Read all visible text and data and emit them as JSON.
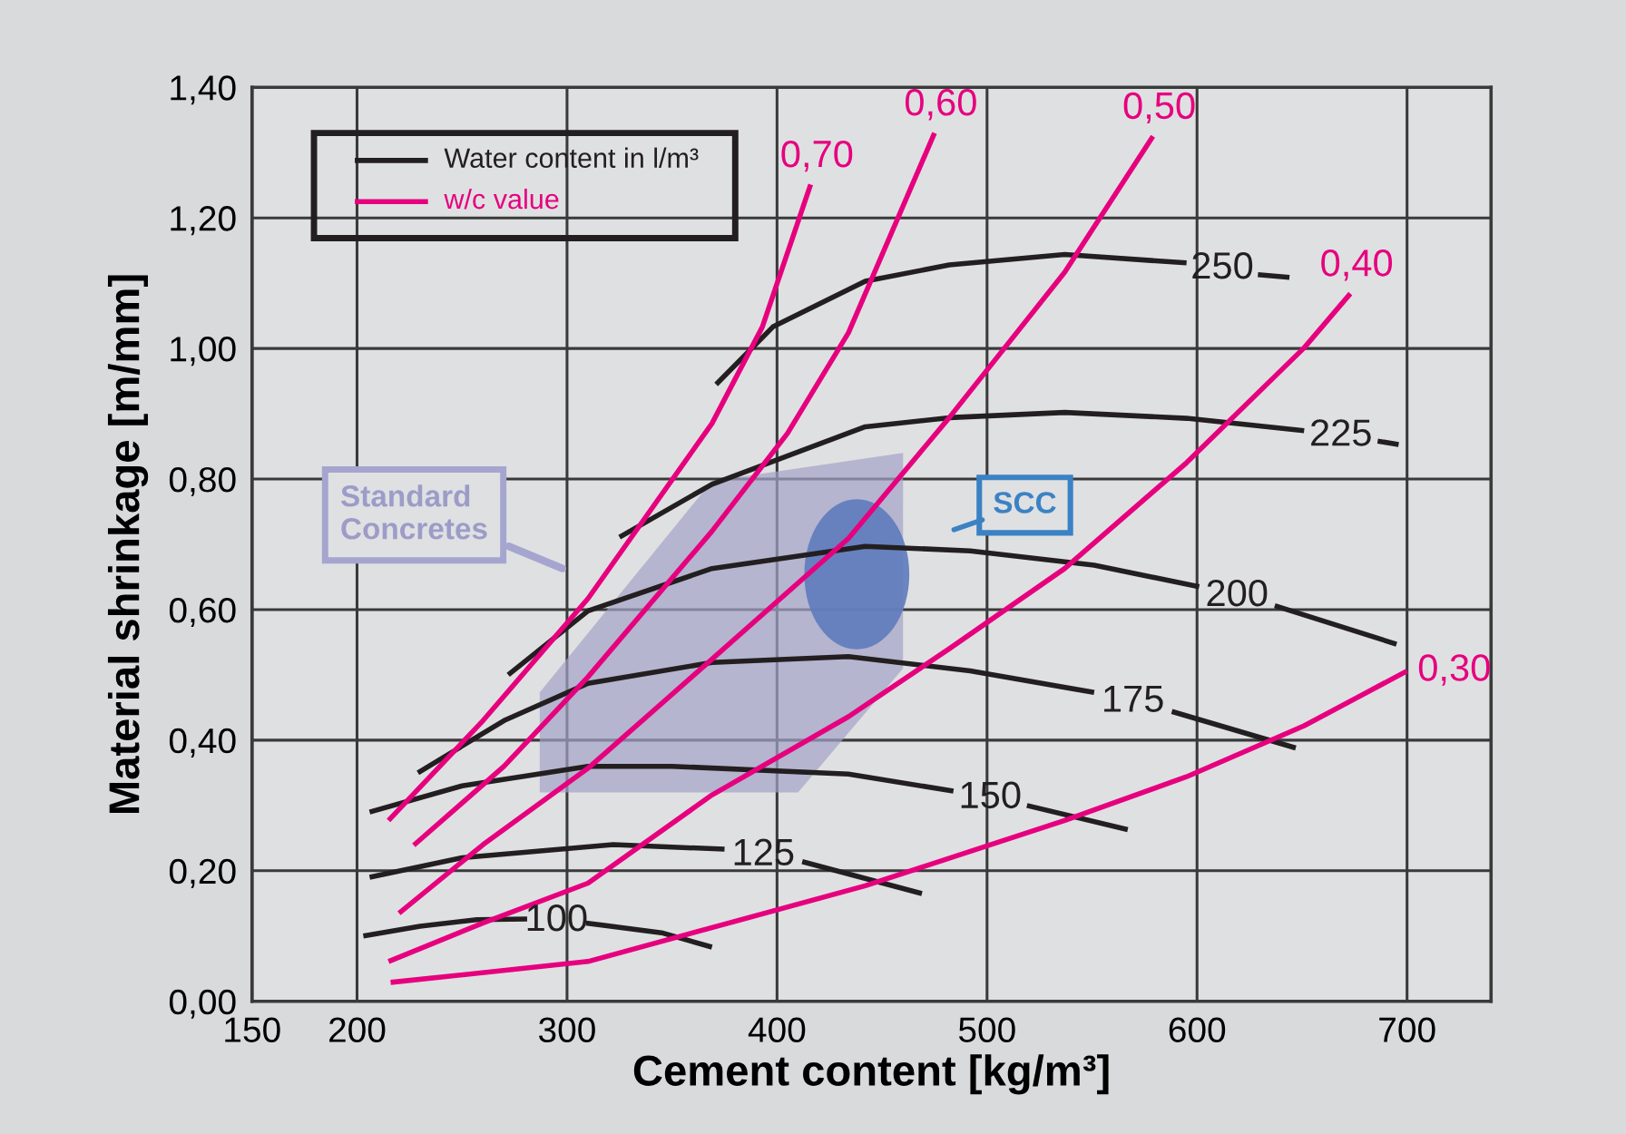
{
  "chart_data": {
    "type": "line",
    "xlabel": "Cement content [kg/m³]",
    "ylabel": "Material shrinkage [m/mm]",
    "xlim": [
      150,
      740
    ],
    "xticks": [
      150,
      200,
      300,
      400,
      500,
      600,
      700
    ],
    "ylim": [
      0,
      1.4
    ],
    "yticks": [
      {
        "value": 0,
        "label": "0,00"
      },
      {
        "value": 0.2,
        "label": "0,20"
      },
      {
        "value": 0.4,
        "label": "0,40"
      },
      {
        "value": 0.6,
        "label": "0,60"
      },
      {
        "value": 0.8,
        "label": "0,80"
      },
      {
        "value": 1.0,
        "label": "1,00"
      },
      {
        "value": 1.2,
        "label": "1,20"
      },
      {
        "value": 1.4,
        "label": "1,40"
      }
    ],
    "grid": true,
    "series": [
      {
        "name": "100",
        "color": "#231f20",
        "x": [
          203,
          230,
          257,
          281,
          295,
          309,
          345,
          369
        ],
        "values": [
          0.1,
          0.115,
          0.125,
          0.126,
          null,
          0.12,
          0.105,
          0.083
        ]
      },
      {
        "name": "125",
        "color": "#231f20",
        "x": [
          206,
          250,
          322,
          375,
          394,
          412,
          469
        ],
        "values": [
          0.19,
          0.22,
          0.24,
          0.233,
          null,
          0.214,
          0.165
        ]
      },
      {
        "name": "150",
        "color": "#231f20",
        "x": [
          206,
          250,
          310,
          350,
          434,
          484,
          502,
          519,
          567
        ],
        "values": [
          0.29,
          0.33,
          0.36,
          0.36,
          0.348,
          0.322,
          null,
          0.3,
          0.263
        ]
      },
      {
        "name": "175",
        "color": "#231f20",
        "x": [
          229,
          270,
          310,
          369,
          434,
          492,
          551,
          570,
          588,
          647
        ],
        "values": [
          0.35,
          0.43,
          0.487,
          0.519,
          0.528,
          0.506,
          0.473,
          null,
          0.444,
          0.388
        ]
      },
      {
        "name": "200",
        "color": "#231f20",
        "x": [
          272,
          310,
          369,
          442,
          492,
          551,
          601,
          619,
          637,
          695
        ],
        "values": [
          0.5,
          0.598,
          0.663,
          0.697,
          0.69,
          0.668,
          0.635,
          null,
          0.606,
          0.547
        ]
      },
      {
        "name": "225",
        "color": "#231f20",
        "x": [
          325,
          369,
          442,
          482,
          537,
          595,
          651,
          670,
          686,
          696
        ],
        "values": [
          0.711,
          0.792,
          0.88,
          0.894,
          0.902,
          0.893,
          0.874,
          null,
          0.858,
          0.853
        ]
      },
      {
        "name": "250",
        "color": "#231f20",
        "x": [
          371,
          398,
          442,
          482,
          537,
          595,
          614,
          629,
          644
        ],
        "values": [
          0.945,
          1.033,
          1.103,
          1.128,
          1.144,
          1.131,
          null,
          1.113,
          1.109
        ]
      },
      {
        "name": "0,70",
        "color": "#e6007e",
        "x": [
          215,
          260,
          310,
          369,
          393,
          416
        ],
        "values": [
          0.277,
          0.43,
          0.617,
          0.885,
          1.033,
          1.251
        ]
      },
      {
        "name": "0,60",
        "color": "#e6007e",
        "x": [
          227,
          270,
          310,
          369,
          405,
          434,
          475
        ],
        "values": [
          0.239,
          0.36,
          0.497,
          0.72,
          0.87,
          1.024,
          1.33
        ]
      },
      {
        "name": "0,50",
        "color": "#e6007e",
        "x": [
          220,
          260,
          310,
          369,
          434,
          482,
          537,
          579
        ],
        "values": [
          0.135,
          0.24,
          0.357,
          0.524,
          0.709,
          0.894,
          1.117,
          1.325
        ]
      },
      {
        "name": "0,40",
        "color": "#e6007e",
        "x": [
          215,
          260,
          310,
          369,
          434,
          482,
          537,
          595,
          651,
          673
        ],
        "values": [
          0.061,
          0.12,
          0.181,
          0.316,
          0.436,
          0.54,
          0.663,
          0.825,
          1.001,
          1.084
        ]
      },
      {
        "name": "0,30",
        "color": "#e6007e",
        "x": [
          216,
          310,
          442,
          537,
          595,
          651,
          700
        ],
        "values": [
          0.029,
          0.061,
          0.177,
          0.277,
          0.344,
          0.422,
          0.506
        ]
      }
    ],
    "annotations": [
      "Water content in l/m³",
      "w/c value",
      "Standard\nConcretes",
      "SCC"
    ]
  }
}
